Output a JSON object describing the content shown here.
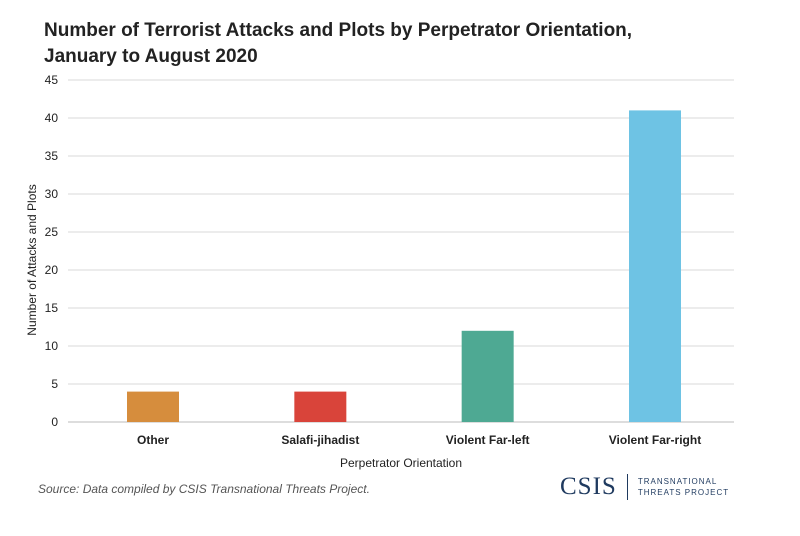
{
  "chart_data": {
    "type": "bar",
    "title_lines": [
      "Number of Terrorist Attacks and Plots by Perpetrator Orientation,",
      "January to August 2020"
    ],
    "xlabel": "Perpetrator Orientation",
    "ylabel": "Number of Attacks and Plots",
    "ylim": [
      0,
      45
    ],
    "yticks": [
      "0",
      "5",
      "10",
      "15",
      "20",
      "25",
      "30",
      "35",
      "40",
      "45"
    ],
    "categories": [
      "Other",
      "Salafi-jihadist",
      "Violent Far-left",
      "Violent Far-right"
    ],
    "values": [
      4,
      4,
      12,
      41
    ],
    "colors": [
      "#d68d3d",
      "#d9443a",
      "#4ea993",
      "#6ec3e4"
    ],
    "grid": true,
    "legend": "none"
  },
  "source": "Source: Data compiled by CSIS Transnational Threats Project.",
  "logo": {
    "name": "CSIS",
    "subtitle_lines": [
      "TRANSNATIONAL",
      "THREATS PROJECT"
    ]
  }
}
